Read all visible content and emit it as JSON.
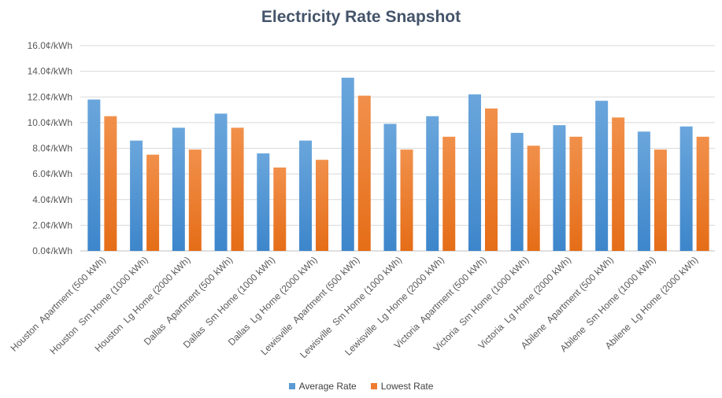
{
  "chart_data": {
    "type": "bar",
    "title": "Electricity Rate Snapshot",
    "xlabel": "",
    "ylabel": "",
    "ylim": [
      0,
      16
    ],
    "yticks": [
      "0.0¢/kWh",
      "2.0¢/kWh",
      "4.0¢/kWh",
      "6.0¢/kWh",
      "8.0¢/kWh",
      "10.0¢/kWh",
      "12.0¢/kWh",
      "14.0¢/kWh",
      "16.0¢/kWh"
    ],
    "grid": true,
    "legend_position": "bottom",
    "categories": [
      "Houston  Apartment (500 kWh)",
      "Houston  Sm Home (1000 kWh)",
      "Houston  Lg Home (2000 kWh)",
      "Dallas  Apartment (500 kWh)",
      "Dallas  Sm Home (1000 kWh)",
      "Dallas  Lg Home (2000 kWh)",
      "Lewisville  Apartment (500 kWh)",
      "Lewisville  Sm Home (1000 kWh)",
      "Lewisville  Lg Home (2000 kWh)",
      "Victoria  Apartment (500 kWh)",
      "Victoria  Sm Home (1000 kWh)",
      "Victoria  Lg Home (2000 kWh)",
      "Abilene  Apartment (500 kWh)",
      "Abilene  Sm Home (1000 kWh)",
      "Abilene  Lg Home (2000 kWh)"
    ],
    "series": [
      {
        "name": "Average Rate",
        "color": "#5b9bd5",
        "values": [
          11.8,
          8.6,
          9.6,
          10.7,
          7.6,
          8.6,
          13.5,
          9.9,
          10.5,
          12.2,
          9.2,
          9.8,
          11.7,
          9.3,
          9.7
        ]
      },
      {
        "name": "Lowest Rate",
        "color": "#ed7d31",
        "values": [
          10.5,
          7.5,
          7.9,
          9.6,
          6.5,
          7.1,
          12.1,
          7.9,
          8.9,
          11.1,
          8.2,
          8.9,
          10.4,
          7.9,
          8.9
        ]
      }
    ]
  }
}
